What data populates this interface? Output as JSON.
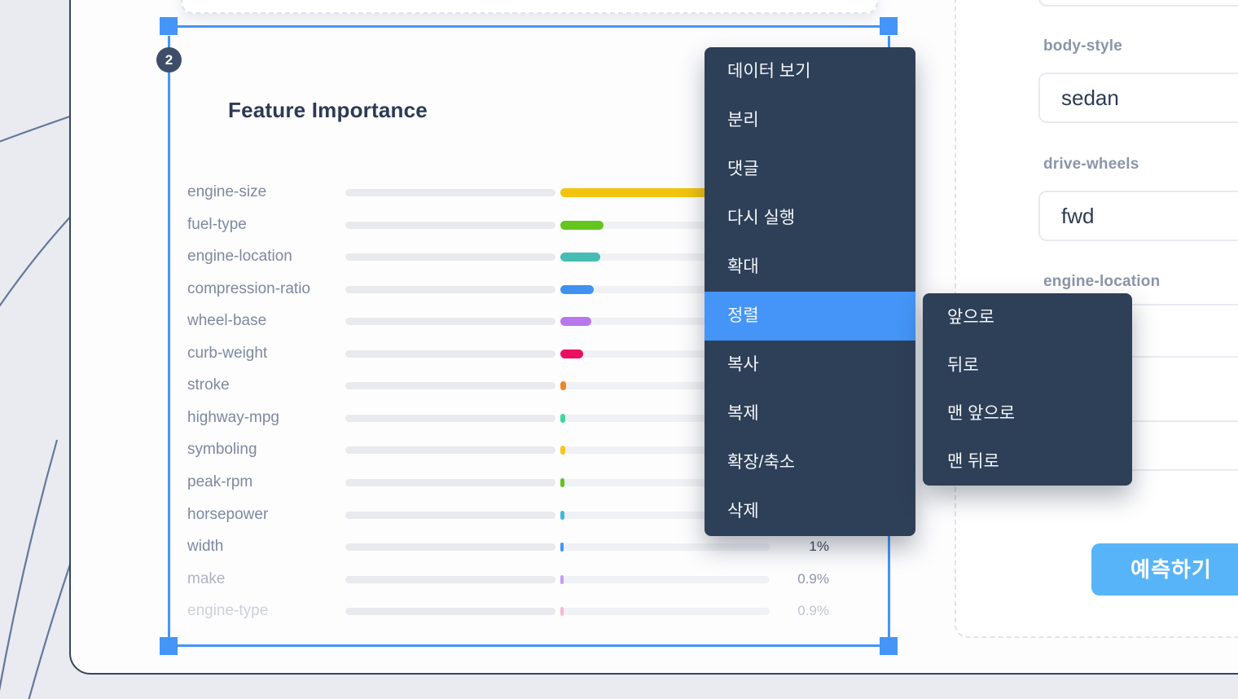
{
  "selection": {
    "badge": "2"
  },
  "chart_data": {
    "type": "bar",
    "title": "Feature Importance",
    "orientation": "horizontal",
    "legend": "none",
    "grid": "off",
    "categories": [
      "engine-size",
      "fuel-type",
      "engine-location",
      "compression-ratio",
      "wheel-base",
      "curb-weight",
      "stroke",
      "highway-mpg",
      "symboling",
      "peak-rpm",
      "horsepower",
      "width",
      "make",
      "engine-type"
    ],
    "rows": [
      {
        "label": "engine-size",
        "color": "#f2c40e",
        "bar": 255,
        "pct": "",
        "fade": 1
      },
      {
        "label": "fuel-type",
        "color": "#64c51f",
        "bar": 53,
        "pct": "",
        "fade": 1
      },
      {
        "label": "engine-location",
        "color": "#45bcb4",
        "bar": 49,
        "pct": "",
        "fade": 1
      },
      {
        "label": "compression-ratio",
        "color": "#3f92f1",
        "bar": 41,
        "pct": "",
        "fade": 1
      },
      {
        "label": "wheel-base",
        "color": "#b678ea",
        "bar": 38,
        "pct": "",
        "fade": 1
      },
      {
        "label": "curb-weight",
        "color": "#e81060",
        "bar": 28,
        "pct": "",
        "fade": 1
      },
      {
        "label": "stroke",
        "color": "#ef8626",
        "bar": 7,
        "pct": "",
        "fade": 1
      },
      {
        "label": "highway-mpg",
        "color": "#3fd79a",
        "bar": 6,
        "pct": "",
        "fade": 1
      },
      {
        "label": "symboling",
        "color": "#f7c51e",
        "bar": 6,
        "pct": "",
        "fade": 1
      },
      {
        "label": "peak-rpm",
        "color": "#64c321",
        "bar": 5,
        "pct": "",
        "fade": 1
      },
      {
        "label": "horsepower",
        "color": "#41b9d5",
        "bar": 5,
        "pct": "",
        "fade": 1
      },
      {
        "label": "width",
        "color": "#4596f5",
        "bar": 4,
        "pct": "1%",
        "fade": 1
      },
      {
        "label": "make",
        "color": "#b982ef",
        "bar": 4,
        "pct": "0.9%",
        "fade": 0.62
      },
      {
        "label": "engine-type",
        "color": "#f585a9",
        "bar": 4,
        "pct": "0.9%",
        "fade": 0.38
      }
    ],
    "pct_colors": {
      "dark": "#3f4b61",
      "mid": "#8c96a9",
      "light": "#c0c6d2"
    }
  },
  "context_menu": {
    "items": [
      "데이터 보기",
      "분리",
      "댓글",
      "다시 실행",
      "확대",
      "정렬",
      "복사",
      "복제",
      "확장/축소",
      "삭제"
    ],
    "active_index": 5
  },
  "submenu": {
    "items": [
      "앞으로",
      "뒤로",
      "맨 앞으로",
      "맨 뒤로"
    ]
  },
  "form": {
    "fields": [
      {
        "label": "body-style",
        "value": "sedan"
      },
      {
        "label": "drive-wheels",
        "value": "fwd"
      },
      {
        "label": "engine-location",
        "value": ""
      },
      {
        "label": "",
        "value": ""
      }
    ],
    "submit_label": "예측하기"
  },
  "colors": {
    "accent_blue": "#4495f7",
    "menu_bg": "#2e3f58",
    "button_blue": "#58b4f8",
    "card_border": "#39455a",
    "page_bg": "#e9ebf0"
  }
}
